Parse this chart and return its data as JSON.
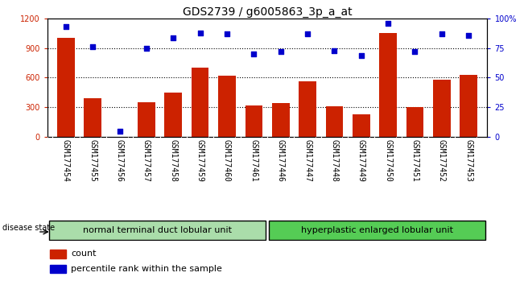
{
  "title": "GDS2739 / g6005863_3p_a_at",
  "samples": [
    "GSM177454",
    "GSM177455",
    "GSM177456",
    "GSM177457",
    "GSM177458",
    "GSM177459",
    "GSM177460",
    "GSM177461",
    "GSM177446",
    "GSM177447",
    "GSM177448",
    "GSM177449",
    "GSM177450",
    "GSM177451",
    "GSM177452",
    "GSM177453"
  ],
  "counts": [
    1000,
    390,
    0,
    350,
    450,
    700,
    620,
    320,
    340,
    560,
    310,
    230,
    1050,
    300,
    580,
    630
  ],
  "percentiles": [
    93,
    76,
    5,
    75,
    84,
    88,
    87,
    70,
    72,
    87,
    73,
    69,
    96,
    72,
    87,
    86
  ],
  "group1_label": "normal terminal duct lobular unit",
  "group2_label": "hyperplastic enlarged lobular unit",
  "group1_n": 8,
  "group2_n": 8,
  "bar_color": "#cc2200",
  "dot_color": "#0000cc",
  "group1_bg": "#aaddaa",
  "group2_bg": "#55cc55",
  "ylim_left": [
    0,
    1200
  ],
  "ylim_right": [
    0,
    100
  ],
  "yticks_left": [
    0,
    300,
    600,
    900,
    1200
  ],
  "yticks_right": [
    0,
    25,
    50,
    75,
    100
  ],
  "ytick_labels_right": [
    "0",
    "25",
    "50",
    "75",
    "100%"
  ],
  "grid_lines": [
    300,
    600,
    900
  ],
  "title_fontsize": 10,
  "tick_fontsize": 7,
  "label_fontsize": 8
}
